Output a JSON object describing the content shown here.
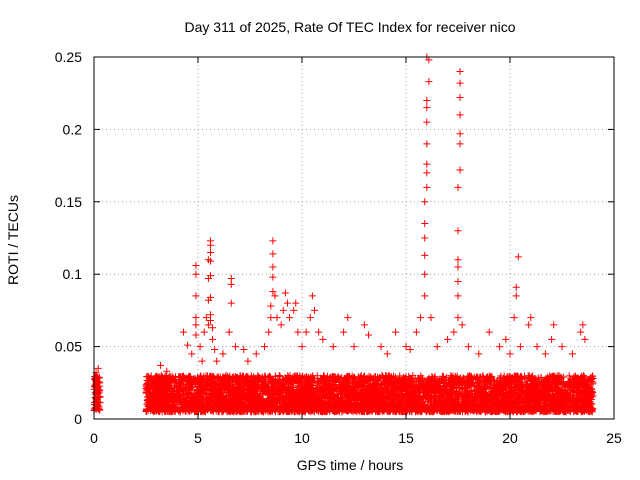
{
  "chart_data": {
    "type": "scatter",
    "title": "Day 311 of 2025, Rate Of TEC Index for receiver nico",
    "xlabel": "GPS time / hours",
    "ylabel": "ROTI / TECUs",
    "xlim": [
      0,
      25
    ],
    "ylim": [
      0,
      0.25
    ],
    "xticks": [
      0,
      5,
      10,
      15,
      20,
      25
    ],
    "xtick_labels": [
      "0",
      "5",
      "10",
      "15",
      "20",
      "25"
    ],
    "yticks": [
      0,
      0.05,
      0.1,
      0.15,
      0.2,
      0.25
    ],
    "ytick_labels": [
      "0",
      "0.05",
      "0.1",
      "0.15",
      "0.2",
      "0.25"
    ],
    "grid": true,
    "marker": "plus",
    "color": "#ff0000",
    "dense_band": {
      "x_ranges": [
        [
          0,
          0.3
        ],
        [
          2.5,
          24
        ]
      ],
      "y_range": [
        0.005,
        0.03
      ]
    },
    "points": [
      [
        0.1,
        0.032
      ],
      [
        0.2,
        0.035
      ],
      [
        0.15,
        0.028
      ],
      [
        3.2,
        0.037
      ],
      [
        3.5,
        0.033
      ],
      [
        4.3,
        0.06
      ],
      [
        4.5,
        0.051
      ],
      [
        4.7,
        0.045
      ],
      [
        4.9,
        0.058
      ],
      [
        4.9,
        0.065
      ],
      [
        4.9,
        0.07
      ],
      [
        4.9,
        0.085
      ],
      [
        4.9,
        0.1
      ],
      [
        4.9,
        0.106
      ],
      [
        5.1,
        0.05
      ],
      [
        5.2,
        0.04
      ],
      [
        5.3,
        0.06
      ],
      [
        5.4,
        0.07
      ],
      [
        5.5,
        0.065
      ],
      [
        5.5,
        0.082
      ],
      [
        5.5,
        0.097
      ],
      [
        5.5,
        0.11
      ],
      [
        5.6,
        0.12
      ],
      [
        5.6,
        0.123
      ],
      [
        5.6,
        0.115
      ],
      [
        5.6,
        0.109
      ],
      [
        5.6,
        0.099
      ],
      [
        5.6,
        0.084
      ],
      [
        5.6,
        0.072
      ],
      [
        5.6,
        0.068
      ],
      [
        5.7,
        0.063
      ],
      [
        5.7,
        0.055
      ],
      [
        5.8,
        0.048
      ],
      [
        5.9,
        0.04
      ],
      [
        6.2,
        0.045
      ],
      [
        6.5,
        0.06
      ],
      [
        6.6,
        0.08
      ],
      [
        6.6,
        0.093
      ],
      [
        6.6,
        0.097
      ],
      [
        6.8,
        0.05
      ],
      [
        7.2,
        0.048
      ],
      [
        7.4,
        0.04
      ],
      [
        7.8,
        0.045
      ],
      [
        8.2,
        0.05
      ],
      [
        8.4,
        0.06
      ],
      [
        8.5,
        0.07
      ],
      [
        8.5,
        0.078
      ],
      [
        8.6,
        0.088
      ],
      [
        8.6,
        0.098
      ],
      [
        8.6,
        0.105
      ],
      [
        8.6,
        0.114
      ],
      [
        8.6,
        0.123
      ],
      [
        8.7,
        0.085
      ],
      [
        8.8,
        0.07
      ],
      [
        9.0,
        0.065
      ],
      [
        9.1,
        0.075
      ],
      [
        9.2,
        0.087
      ],
      [
        9.3,
        0.08
      ],
      [
        9.4,
        0.07
      ],
      [
        9.6,
        0.075
      ],
      [
        9.7,
        0.08
      ],
      [
        9.8,
        0.06
      ],
      [
        10.0,
        0.05
      ],
      [
        10.2,
        0.06
      ],
      [
        10.4,
        0.07
      ],
      [
        10.5,
        0.085
      ],
      [
        10.6,
        0.075
      ],
      [
        10.8,
        0.06
      ],
      [
        11.0,
        0.055
      ],
      [
        11.5,
        0.05
      ],
      [
        12.0,
        0.06
      ],
      [
        12.2,
        0.07
      ],
      [
        12.5,
        0.05
      ],
      [
        13.0,
        0.065
      ],
      [
        13.2,
        0.058
      ],
      [
        13.8,
        0.05
      ],
      [
        14.1,
        0.045
      ],
      [
        14.5,
        0.06
      ],
      [
        15.0,
        0.05
      ],
      [
        15.2,
        0.048
      ],
      [
        15.5,
        0.06
      ],
      [
        15.7,
        0.07
      ],
      [
        15.9,
        0.085
      ],
      [
        15.9,
        0.1
      ],
      [
        15.9,
        0.113
      ],
      [
        15.9,
        0.125
      ],
      [
        15.9,
        0.135
      ],
      [
        15.9,
        0.15
      ],
      [
        16.0,
        0.16
      ],
      [
        16.0,
        0.17
      ],
      [
        16.0,
        0.176
      ],
      [
        16.0,
        0.19
      ],
      [
        16.0,
        0.205
      ],
      [
        16.0,
        0.215
      ],
      [
        16.0,
        0.22
      ],
      [
        16.1,
        0.233
      ],
      [
        16.1,
        0.248
      ],
      [
        16.0,
        0.25
      ],
      [
        16.2,
        0.07
      ],
      [
        16.5,
        0.05
      ],
      [
        17.0,
        0.055
      ],
      [
        17.3,
        0.06
      ],
      [
        17.5,
        0.07
      ],
      [
        17.5,
        0.085
      ],
      [
        17.5,
        0.095
      ],
      [
        17.5,
        0.105
      ],
      [
        17.5,
        0.11
      ],
      [
        17.5,
        0.13
      ],
      [
        17.5,
        0.16
      ],
      [
        17.6,
        0.172
      ],
      [
        17.6,
        0.19
      ],
      [
        17.6,
        0.197
      ],
      [
        17.6,
        0.21
      ],
      [
        17.6,
        0.222
      ],
      [
        17.6,
        0.232
      ],
      [
        17.6,
        0.24
      ],
      [
        17.7,
        0.065
      ],
      [
        18.0,
        0.05
      ],
      [
        18.5,
        0.045
      ],
      [
        19.0,
        0.06
      ],
      [
        19.5,
        0.05
      ],
      [
        19.8,
        0.055
      ],
      [
        20.0,
        0.045
      ],
      [
        20.2,
        0.07
      ],
      [
        20.3,
        0.085
      ],
      [
        20.3,
        0.091
      ],
      [
        20.4,
        0.112
      ],
      [
        20.5,
        0.05
      ],
      [
        20.9,
        0.065
      ],
      [
        21.0,
        0.07
      ],
      [
        21.3,
        0.05
      ],
      [
        21.7,
        0.045
      ],
      [
        22.0,
        0.055
      ],
      [
        22.1,
        0.065
      ],
      [
        22.5,
        0.05
      ],
      [
        23.0,
        0.045
      ],
      [
        23.4,
        0.06
      ],
      [
        23.5,
        0.065
      ],
      [
        23.6,
        0.055
      ]
    ]
  }
}
